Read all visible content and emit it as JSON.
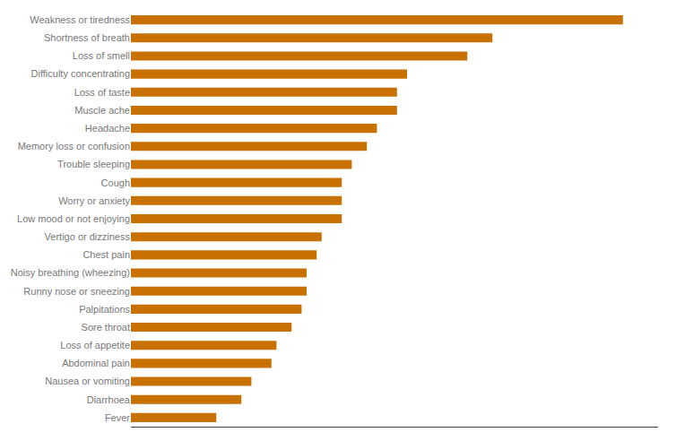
{
  "chart_data": {
    "type": "bar",
    "orientation": "horizontal",
    "categories": [
      "Weakness or tiredness",
      "Shortness of breath",
      "Loss of smell",
      "Difficulty concentrating",
      "Loss of taste",
      "Muscle ache",
      "Headache",
      "Memory loss or confusion",
      "Trouble sleeping",
      "Cough",
      "Worry or anxiety",
      "Low mood or not enjoying",
      "Vertigo or dizziness",
      "Chest pain",
      "Noisy breathing (wheezing)",
      "Runny nose or sneezing",
      "Palpitations",
      "Sore throat",
      "Loss of appetite",
      "Abdominal pain",
      "Nausea or vomiting",
      "Diarrhoea",
      "Fever"
    ],
    "values": [
      98,
      72,
      67,
      55,
      53,
      53,
      49,
      47,
      44,
      42,
      42,
      42,
      38,
      37,
      35,
      35,
      34,
      32,
      29,
      28,
      24,
      22,
      17
    ],
    "color": "#C87000",
    "xlim": [
      0,
      105
    ],
    "tick_labels": "y",
    "grid": false
  }
}
